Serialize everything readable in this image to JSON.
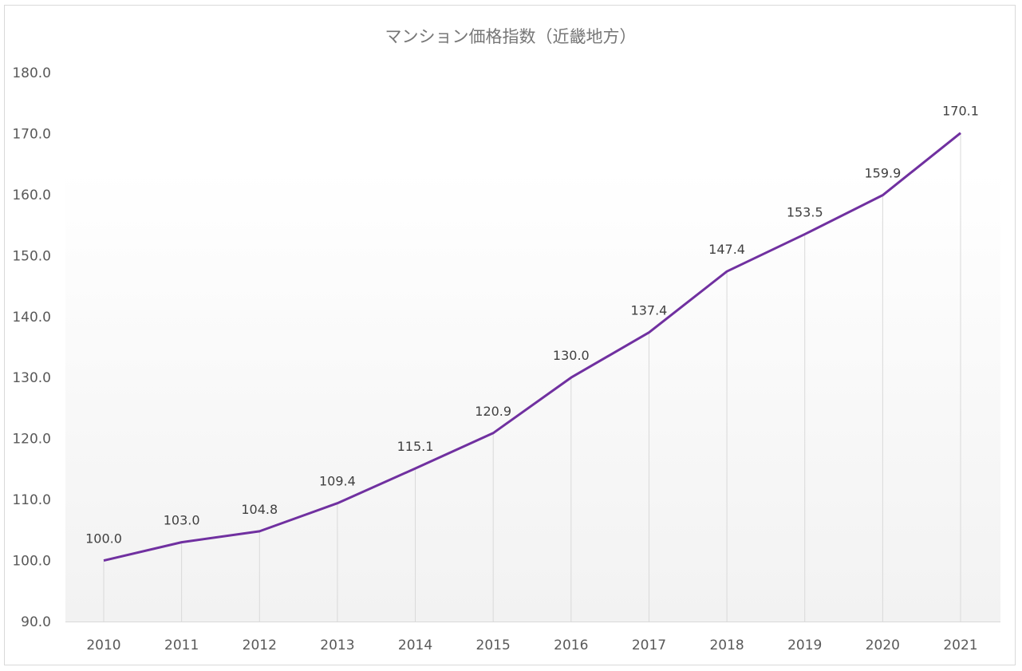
{
  "chart_data": {
    "type": "line",
    "title": "マンション価格指数（近畿地方）",
    "xlabel": "",
    "ylabel": "",
    "categories": [
      "2010",
      "2011",
      "2012",
      "2013",
      "2014",
      "2015",
      "2016",
      "2017",
      "2018",
      "2019",
      "2020",
      "2021"
    ],
    "series": [
      {
        "values": [
          100.0,
          103.0,
          104.8,
          109.4,
          115.1,
          120.9,
          130.0,
          137.4,
          147.4,
          153.5,
          159.9,
          170.1
        ],
        "labels": [
          "100.0",
          "103.0",
          "104.8",
          "109.4",
          "115.1",
          "120.9",
          "130.0",
          "137.4",
          "147.4",
          "153.5",
          "159.9",
          "170.1"
        ],
        "color": "#7030a0"
      }
    ],
    "ylim": [
      90,
      180
    ],
    "yticks": [
      "90.0",
      "100.0",
      "110.0",
      "120.0",
      "130.0",
      "140.0",
      "150.0",
      "160.0",
      "170.0",
      "180.0"
    ],
    "grid": "vertical drop lines",
    "legend": "none"
  }
}
